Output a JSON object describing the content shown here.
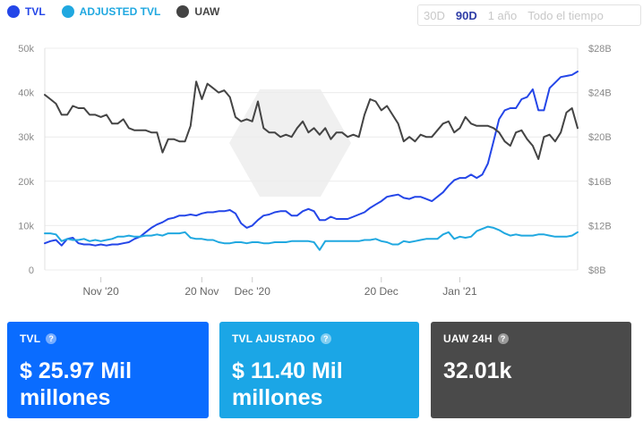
{
  "legend": [
    {
      "label": "TVL",
      "color": "#2446e8"
    },
    {
      "label": "ADJUSTED TVL",
      "color": "#20a8e0"
    },
    {
      "label": "UAW",
      "color": "#444444"
    }
  ],
  "ranges": [
    "30D",
    "90D",
    "1 año",
    "Todo el tiempo"
  ],
  "active_range": "90D",
  "cards": [
    {
      "label": "TVL",
      "value": "$ 25.97 Mil millones",
      "color": "#0a6cff"
    },
    {
      "label": "TVL AJUSTADO",
      "value": "$ 11.40 Mil millones",
      "color": "#1ba6e6"
    },
    {
      "label": "UAW 24H",
      "value": "32.01k",
      "color": "#4a4a4a"
    }
  ],
  "chart_data": {
    "type": "line",
    "x_ticks": [
      "Nov '20",
      "20 Nov",
      "Dec '20",
      "20 Dec",
      "Jan '21"
    ],
    "y_left": {
      "ticks": [
        "0",
        "10k",
        "20k",
        "30k",
        "40k",
        "50k"
      ],
      "ylim": [
        0,
        50000
      ]
    },
    "y_right": {
      "ticks": [
        "$8B",
        "$12B",
        "$16B",
        "$20B",
        "$24B",
        "$28B"
      ],
      "ylim": [
        8,
        28
      ]
    },
    "grid": true,
    "legend_position": "top-left",
    "series": [
      {
        "name": "TVL",
        "axis": "right",
        "color": "#2446e8",
        "values": [
          10.4,
          10.6,
          10.7,
          10.2,
          10.8,
          10.9,
          10.4,
          10.3,
          10.3,
          10.2,
          10.3,
          10.2,
          10.3,
          10.3,
          10.4,
          10.5,
          10.8,
          11.0,
          11.4,
          11.8,
          12.1,
          12.3,
          12.6,
          12.7,
          12.9,
          12.9,
          13.0,
          12.9,
          13.1,
          13.2,
          13.2,
          13.3,
          13.3,
          13.4,
          13.1,
          12.2,
          11.8,
          12.0,
          12.5,
          12.9,
          13.0,
          13.2,
          13.3,
          13.3,
          12.9,
          12.9,
          13.3,
          13.5,
          13.3,
          12.5,
          12.5,
          12.8,
          12.6,
          12.6,
          12.6,
          12.8,
          13.0,
          13.2,
          13.6,
          13.9,
          14.2,
          14.6,
          14.7,
          14.8,
          14.5,
          14.4,
          14.6,
          14.6,
          14.4,
          14.2,
          14.6,
          15.0,
          15.6,
          16.1,
          16.3,
          16.3,
          16.6,
          16.3,
          16.6,
          17.6,
          19.6,
          21.6,
          22.4,
          22.6,
          22.6,
          23.4,
          23.6,
          24.3,
          22.4,
          22.4,
          24.4,
          24.9,
          25.4,
          25.5,
          25.6,
          25.9
        ]
      },
      {
        "name": "ADJUSTED TVL",
        "axis": "right",
        "color": "#20a8e0",
        "values": [
          11.3,
          11.3,
          11.2,
          10.6,
          10.8,
          10.7,
          10.7,
          10.8,
          10.6,
          10.7,
          10.6,
          10.7,
          10.8,
          11.0,
          11.0,
          11.1,
          11.0,
          11.0,
          11.1,
          11.1,
          11.2,
          11.1,
          11.3,
          11.3,
          11.3,
          11.4,
          10.9,
          10.8,
          10.8,
          10.7,
          10.7,
          10.5,
          10.4,
          10.4,
          10.5,
          10.5,
          10.4,
          10.5,
          10.5,
          10.4,
          10.4,
          10.5,
          10.5,
          10.5,
          10.6,
          10.6,
          10.6,
          10.6,
          10.5,
          9.8,
          10.6,
          10.6,
          10.6,
          10.6,
          10.6,
          10.6,
          10.6,
          10.7,
          10.7,
          10.8,
          10.6,
          10.5,
          10.3,
          10.3,
          10.6,
          10.5,
          10.6,
          10.7,
          10.8,
          10.8,
          10.8,
          11.2,
          11.4,
          10.8,
          11.0,
          10.9,
          11.0,
          11.5,
          11.7,
          11.9,
          11.8,
          11.6,
          11.3,
          11.1,
          11.2,
          11.1,
          11.1,
          11.1,
          11.2,
          11.2,
          11.1,
          11.0,
          11.0,
          11.0,
          11.1,
          11.4
        ]
      },
      {
        "name": "UAW",
        "axis": "left",
        "color": "#444444",
        "values": [
          39500,
          38500,
          37500,
          35000,
          35000,
          37000,
          36500,
          36500,
          35000,
          35000,
          34500,
          35000,
          33000,
          33000,
          34000,
          32000,
          31500,
          31500,
          31500,
          31000,
          31000,
          26500,
          29500,
          29500,
          29000,
          29000,
          32500,
          42500,
          38500,
          42000,
          41000,
          40000,
          40500,
          39000,
          34500,
          33500,
          34000,
          33500,
          38000,
          32000,
          31000,
          31000,
          30000,
          30500,
          30000,
          32000,
          33500,
          31000,
          32000,
          30500,
          32000,
          29500,
          31000,
          31000,
          30000,
          30500,
          30000,
          35000,
          38500,
          38000,
          36000,
          37000,
          35000,
          33000,
          29000,
          30000,
          29000,
          30500,
          30000,
          30000,
          31500,
          33000,
          33500,
          31000,
          32000,
          34500,
          33000,
          32500,
          32500,
          32500,
          32000,
          31000,
          29000,
          28000,
          31000,
          31500,
          29500,
          28000,
          25000,
          30000,
          30500,
          29000,
          31000,
          35500,
          36500,
          32000
        ]
      }
    ]
  }
}
